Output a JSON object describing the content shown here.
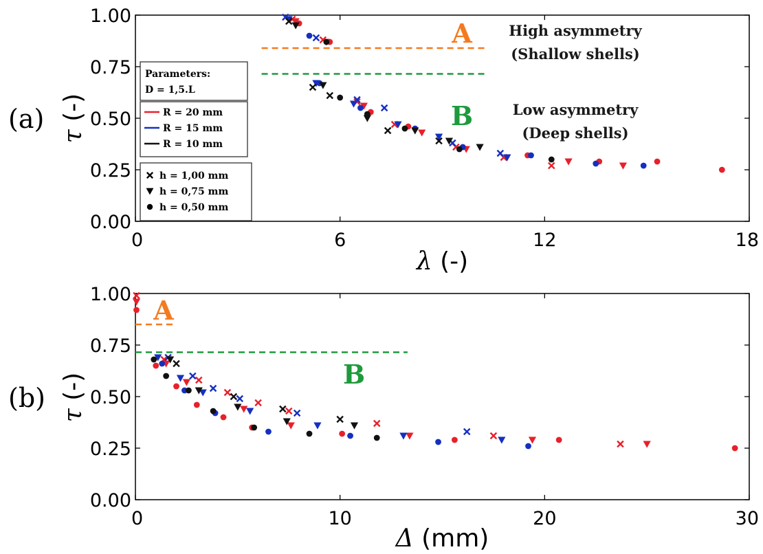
{
  "colors": {
    "R20": "#e8202a",
    "R15": "#1530c0",
    "R10": "#111111",
    "zoneA": "#f47a20",
    "zoneB": "#1e9a3c"
  },
  "chart_data": [
    {
      "panel": "(a)",
      "type": "scatter",
      "xlabel_symbol": "λ",
      "xlabel_unit": "(-)",
      "ylabel_symbol": "τ",
      "ylabel_unit": "(-)",
      "xlim": [
        0,
        18
      ],
      "ylim": [
        0,
        1
      ],
      "xticks": [
        "0",
        "6",
        "12",
        "18"
      ],
      "yticks": [
        "0.00",
        "0.25",
        "0.50",
        "0.75",
        "1.00"
      ],
      "grid": false,
      "thresholds": [
        {
          "label": "A",
          "y": 0.84,
          "x": [
            3.7,
            10.3
          ],
          "color_key": "zoneA"
        },
        {
          "label": "B",
          "y": 0.715,
          "x": [
            3.7,
            10.3
          ],
          "color_key": "zoneB"
        }
      ],
      "annotations": [
        {
          "lines": [
            "High asymmetry",
            "(Shallow shells)"
          ]
        },
        {
          "lines": [
            "Low asymmetry",
            "(Deep shells)"
          ]
        }
      ],
      "legend": {
        "parameters_title": "Parameters:",
        "parameters_value": "D = 1,5.L",
        "radius_entries": [
          "R = 20 mm",
          "R = 15 mm",
          "R = 10 mm"
        ],
        "thickness_entries": [
          "h = 1,00 mm",
          "h = 0,75 mm",
          "h = 0,50 mm"
        ]
      },
      "series": [
        {
          "R": 20,
          "h": 1.0,
          "marker": "x",
          "points": [
            [
              4.6,
              0.98
            ],
            [
              5.5,
              0.88
            ],
            [
              6.5,
              0.58
            ],
            [
              7.6,
              0.47
            ],
            [
              9.4,
              0.36
            ],
            [
              10.8,
              0.31
            ],
            [
              12.2,
              0.27
            ]
          ]
        },
        {
          "R": 20,
          "h": 0.75,
          "marker": "v",
          "points": [
            [
              4.7,
              0.97
            ],
            [
              5.6,
              0.87
            ],
            [
              6.7,
              0.56
            ],
            [
              8.4,
              0.43
            ],
            [
              9.7,
              0.35
            ],
            [
              10.9,
              0.31
            ],
            [
              12.7,
              0.29
            ],
            [
              14.3,
              0.27
            ]
          ]
        },
        {
          "R": 20,
          "h": 0.5,
          "marker": "o",
          "points": [
            [
              4.8,
              0.96
            ],
            [
              5.7,
              0.87
            ],
            [
              6.9,
              0.53
            ],
            [
              8.0,
              0.46
            ],
            [
              9.6,
              0.36
            ],
            [
              11.5,
              0.32
            ],
            [
              13.6,
              0.29
            ],
            [
              15.3,
              0.29
            ],
            [
              17.2,
              0.25
            ]
          ]
        },
        {
          "R": 15,
          "h": 1.0,
          "marker": "x",
          "points": [
            [
              4.4,
              0.99
            ],
            [
              5.3,
              0.89
            ],
            [
              6.5,
              0.59
            ],
            [
              7.3,
              0.55
            ],
            [
              9.3,
              0.38
            ],
            [
              10.7,
              0.33
            ]
          ]
        },
        {
          "R": 15,
          "h": 0.75,
          "marker": "v",
          "points": [
            [
              4.5,
              0.98
            ],
            [
              5.3,
              0.67
            ],
            [
              6.4,
              0.57
            ],
            [
              7.7,
              0.47
            ],
            [
              8.9,
              0.41
            ],
            [
              10.9,
              0.31
            ]
          ]
        },
        {
          "R": 15,
          "h": 0.5,
          "marker": "o",
          "points": [
            [
              5.1,
              0.9
            ],
            [
              5.4,
              0.67
            ],
            [
              6.6,
              0.55
            ],
            [
              8.2,
              0.45
            ],
            [
              9.6,
              0.36
            ],
            [
              11.6,
              0.32
            ],
            [
              13.5,
              0.28
            ],
            [
              14.9,
              0.27
            ]
          ]
        },
        {
          "R": 10,
          "h": 1.0,
          "marker": "x",
          "points": [
            [
              4.5,
              0.97
            ],
            [
              5.2,
              0.65
            ],
            [
              5.7,
              0.61
            ],
            [
              7.4,
              0.44
            ],
            [
              8.9,
              0.39
            ]
          ]
        },
        {
          "R": 10,
          "h": 0.75,
          "marker": "v",
          "points": [
            [
              4.7,
              0.95
            ],
            [
              5.5,
              0.66
            ],
            [
              6.8,
              0.5
            ],
            [
              8.2,
              0.44
            ],
            [
              9.2,
              0.39
            ],
            [
              10.1,
              0.36
            ]
          ]
        },
        {
          "R": 10,
          "h": 0.5,
          "marker": "o",
          "points": [
            [
              5.6,
              0.87
            ],
            [
              6.0,
              0.6
            ],
            [
              6.8,
              0.52
            ],
            [
              7.9,
              0.45
            ],
            [
              9.5,
              0.35
            ],
            [
              12.2,
              0.3
            ]
          ]
        }
      ]
    },
    {
      "panel": "(b)",
      "type": "scatter",
      "xlabel_symbol": "Δ",
      "xlabel_unit": "(mm)",
      "ylabel_symbol": "τ",
      "ylabel_unit": "(-)",
      "xlim": [
        0,
        30
      ],
      "ylim": [
        0,
        1
      ],
      "xticks": [
        "0",
        "10",
        "20",
        "30"
      ],
      "yticks": [
        "0.00",
        "0.25",
        "0.50",
        "0.75",
        "1.00"
      ],
      "grid": false,
      "thresholds": [
        {
          "label": "A",
          "y": 0.85,
          "x": [
            0,
            1.9
          ],
          "color_key": "zoneA"
        },
        {
          "label": "B",
          "y": 0.715,
          "x": [
            0,
            13.3
          ],
          "color_key": "zoneB"
        }
      ],
      "series": [
        {
          "R": 20,
          "h": 1.0,
          "marker": "x",
          "points": [
            [
              0.05,
              0.99
            ],
            [
              1.4,
              0.68
            ],
            [
              3.1,
              0.58
            ],
            [
              4.5,
              0.52
            ],
            [
              6.0,
              0.47
            ],
            [
              7.5,
              0.43
            ],
            [
              11.8,
              0.37
            ],
            [
              17.5,
              0.31
            ],
            [
              23.7,
              0.27
            ]
          ]
        },
        {
          "R": 20,
          "h": 0.75,
          "marker": "v",
          "points": [
            [
              0.05,
              0.96
            ],
            [
              1.5,
              0.66
            ],
            [
              2.5,
              0.57
            ],
            [
              5.3,
              0.44
            ],
            [
              7.6,
              0.36
            ],
            [
              13.4,
              0.31
            ],
            [
              19.4,
              0.29
            ],
            [
              25.0,
              0.27
            ]
          ]
        },
        {
          "R": 20,
          "h": 0.5,
          "marker": "o",
          "points": [
            [
              0.05,
              0.92
            ],
            [
              1.0,
              0.65
            ],
            [
              2.0,
              0.55
            ],
            [
              3.0,
              0.46
            ],
            [
              4.3,
              0.4
            ],
            [
              5.7,
              0.35
            ],
            [
              10.1,
              0.32
            ],
            [
              15.6,
              0.29
            ],
            [
              20.7,
              0.29
            ],
            [
              29.3,
              0.25
            ]
          ]
        },
        {
          "R": 15,
          "h": 1.0,
          "marker": "x",
          "points": [
            [
              1.6,
              0.69
            ],
            [
              2.8,
              0.6
            ],
            [
              3.8,
              0.54
            ],
            [
              5.1,
              0.49
            ],
            [
              7.9,
              0.42
            ],
            [
              16.2,
              0.33
            ]
          ]
        },
        {
          "R": 15,
          "h": 0.75,
          "marker": "v",
          "points": [
            [
              1.1,
              0.69
            ],
            [
              2.2,
              0.59
            ],
            [
              3.3,
              0.52
            ],
            [
              5.6,
              0.43
            ],
            [
              8.9,
              0.36
            ],
            [
              13.1,
              0.31
            ],
            [
              17.9,
              0.29
            ]
          ]
        },
        {
          "R": 15,
          "h": 0.5,
          "marker": "o",
          "points": [
            [
              1.3,
              0.66
            ],
            [
              2.4,
              0.53
            ],
            [
              3.9,
              0.42
            ],
            [
              6.5,
              0.33
            ],
            [
              10.5,
              0.31
            ],
            [
              14.8,
              0.28
            ],
            [
              19.2,
              0.26
            ]
          ]
        },
        {
          "R": 10,
          "h": 1.0,
          "marker": "x",
          "points": [
            [
              2.0,
              0.66
            ],
            [
              4.8,
              0.5
            ],
            [
              7.2,
              0.44
            ],
            [
              10.0,
              0.39
            ]
          ]
        },
        {
          "R": 10,
          "h": 0.75,
          "marker": "v",
          "points": [
            [
              1.7,
              0.68
            ],
            [
              3.1,
              0.53
            ],
            [
              5.0,
              0.45
            ],
            [
              7.4,
              0.38
            ],
            [
              10.7,
              0.36
            ]
          ]
        },
        {
          "R": 10,
          "h": 0.5,
          "marker": "o",
          "points": [
            [
              0.9,
              0.68
            ],
            [
              1.5,
              0.6
            ],
            [
              2.6,
              0.53
            ],
            [
              3.8,
              0.43
            ],
            [
              5.8,
              0.35
            ],
            [
              8.5,
              0.32
            ],
            [
              11.8,
              0.3
            ]
          ]
        }
      ]
    }
  ]
}
